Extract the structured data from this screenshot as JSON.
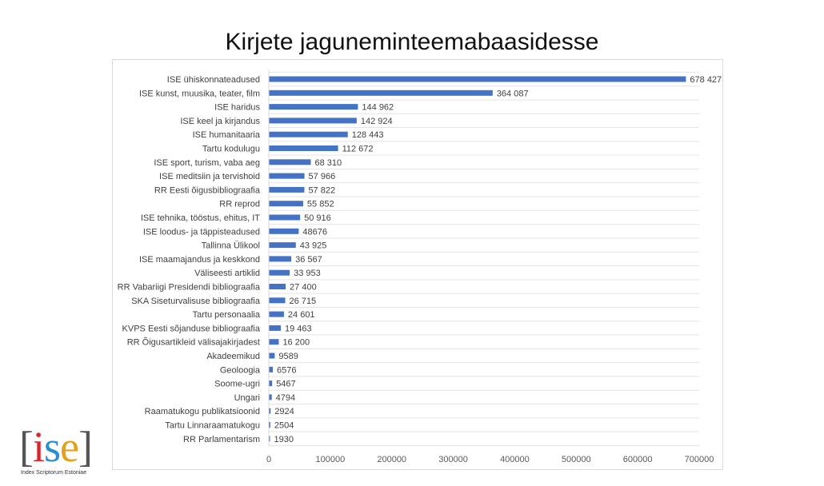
{
  "title": "Kirjete jaguneminteemabaasidesse",
  "logo": {
    "mark_parts": [
      {
        "text": "[",
        "color": "#555555"
      },
      {
        "text": "i",
        "color": "#d9262c"
      },
      {
        "text": "s",
        "color": "#2a8fd0"
      },
      {
        "text": "e",
        "color": "#e0a21a"
      },
      {
        "text": "]",
        "color": "#555555"
      }
    ],
    "caption": "Index Scriptorum Estoniae"
  },
  "chart_data": {
    "type": "bar",
    "orientation": "horizontal",
    "bar_color": "#4472c4",
    "title": "Kirjete jaguneminteemabaasidesse",
    "xlim": [
      0,
      700000
    ],
    "x_ticks": [
      0,
      100000,
      200000,
      300000,
      400000,
      500000,
      600000,
      700000
    ],
    "grid": true,
    "categories": [
      "ISE ühiskonnateadused",
      "ISE kunst, muusika, teater, film",
      "ISE haridus",
      "ISE keel ja kirjandus",
      "ISE humanitaaria",
      "Tartu kodulugu",
      "ISE sport, turism, vaba aeg",
      "ISE meditsiin ja tervishoid",
      "RR Eesti õigusbibliograafia",
      "RR reprod",
      "ISE tehnika, tööstus, ehitus, IT",
      "ISE loodus- ja täppisteadused",
      "Tallinna Ülikool",
      "ISE maamajandus ja keskkond",
      "Väliseesti artiklid",
      "RR Vabariigi Presidendi bibliograafia",
      "SKA Siseturvalisuse bibliograafia",
      "Tartu personaalia",
      "KVPS Eesti sõjanduse bibliograafia",
      "RR Õigusartikleid välisajakirjadest",
      "Akadeemikud",
      "Geoloogia",
      "Soome-ugri",
      "Ungari",
      "Raamatukogu publikatsioonid",
      "Tartu Linnaraamatukogu",
      "RR Parlamentarism"
    ],
    "values": [
      678427,
      364087,
      144962,
      142924,
      128443,
      112672,
      68310,
      57966,
      57822,
      55852,
      50916,
      48676,
      43925,
      36567,
      33953,
      27400,
      26715,
      24601,
      19463,
      16200,
      9589,
      6576,
      5467,
      4794,
      2924,
      2504,
      1930
    ],
    "value_labels": [
      "678 427",
      "364 087",
      "144 962",
      "142 924",
      "128 443",
      "112 672",
      "68 310",
      "57 966",
      "57 822",
      "55 852",
      "50 916",
      "48676",
      "43 925",
      "36 567",
      "33 953",
      "27 400",
      "26 715",
      "24 601",
      "19 463",
      "16 200",
      "9589",
      "6576",
      "5467",
      "4794",
      "2924",
      "2504",
      "1930"
    ]
  }
}
